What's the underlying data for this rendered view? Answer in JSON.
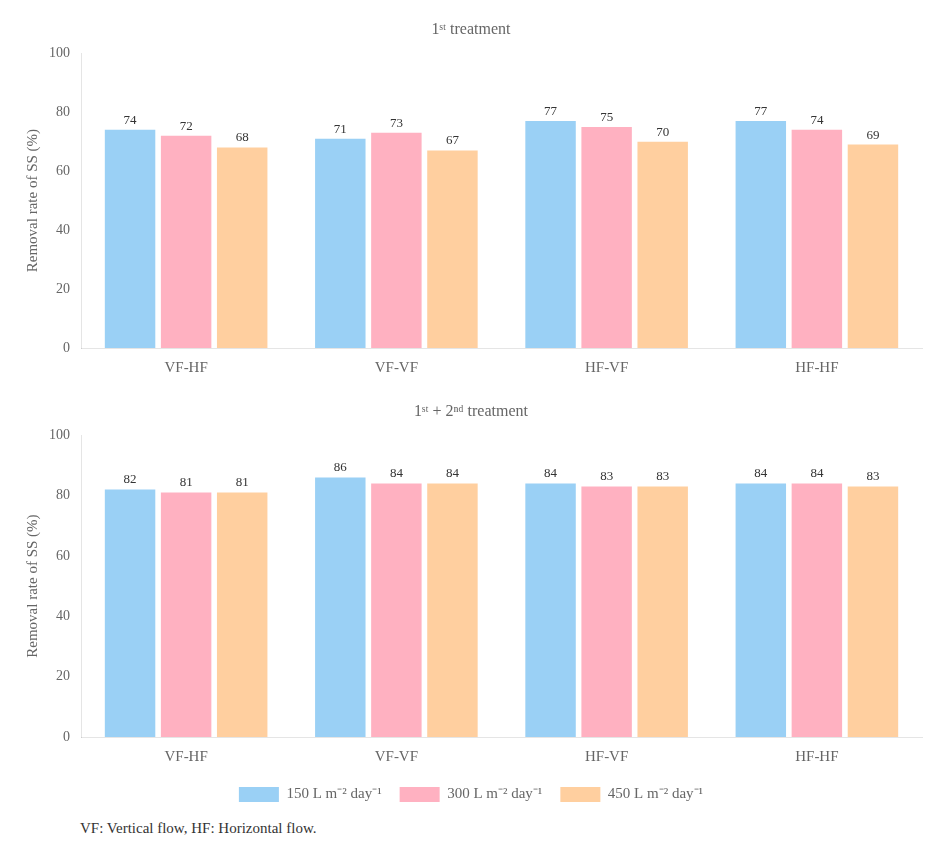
{
  "chart_data": [
    {
      "type": "bar",
      "categories": [
        "VF-HF",
        "VF-VF",
        "HF-VF",
        "HF-HF"
      ],
      "series": [
        {
          "name": "150 L m⁻² day⁻¹",
          "values": [
            74,
            71,
            77,
            77
          ]
        },
        {
          "name": "300 L m⁻² day⁻¹",
          "values": [
            72,
            73,
            75,
            74
          ]
        },
        {
          "name": "450 L m⁻² day⁻¹",
          "values": [
            68,
            67,
            70,
            69
          ]
        }
      ],
      "ylabel": "Removal rate of SS (%)",
      "ylim": [
        0,
        100
      ],
      "yticks": [
        0,
        20,
        40,
        60,
        80,
        100
      ],
      "grid": false,
      "data_labels": true,
      "annotations": [
        "1ˢᵗ treatment"
      ]
    },
    {
      "type": "bar",
      "categories": [
        "VF-HF",
        "VF-VF",
        "HF-VF",
        "HF-HF"
      ],
      "series": [
        {
          "name": "150 L m⁻² day⁻¹",
          "values": [
            82,
            86,
            84,
            84
          ]
        },
        {
          "name": "300 L m⁻² day⁻¹",
          "values": [
            81,
            84,
            83,
            84
          ]
        },
        {
          "name": "450 L m⁻² day⁻¹",
          "values": [
            81,
            84,
            83,
            83
          ]
        }
      ],
      "ylabel": "Removal rate of SS (%)",
      "ylim": [
        0,
        100
      ],
      "yticks": [
        0,
        20,
        40,
        60,
        80,
        100
      ],
      "grid": false,
      "data_labels": true,
      "legend": "bottom",
      "annotations": [
        "1ˢᵗ + 2ⁿᵈ treatment",
        "VF: Vertical flow, HF: Horizontal flow."
      ]
    }
  ]
}
